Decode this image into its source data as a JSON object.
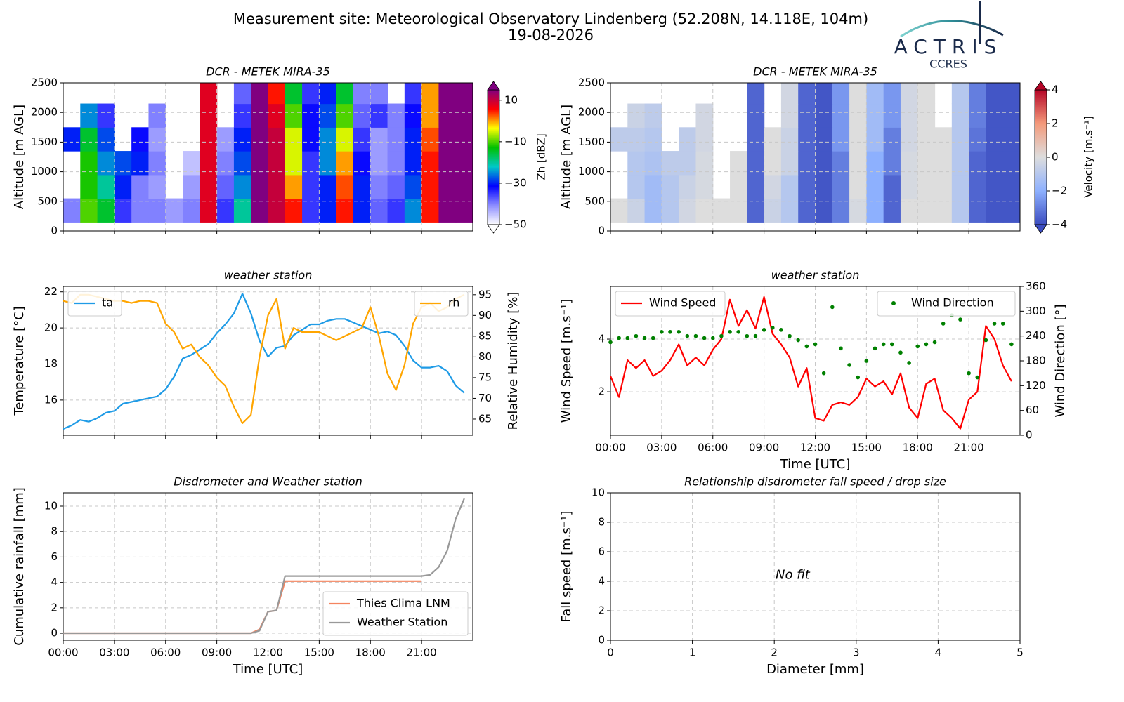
{
  "header": {
    "title": "Measurement site: Meteorological Observatory Lindenberg (52.208N, 14.118E, 104m)",
    "date": "19-08-2026",
    "logo": "ACTRIS",
    "logo_subtitle": "CCRES"
  },
  "chart_data": [
    {
      "type": "heatmap",
      "title": "DCR - METEK MIRA-35",
      "ylabel": "Altitude [m AGL]",
      "x": [
        0.5,
        1.5,
        2.5,
        3.5,
        4.5,
        5.5,
        6.5,
        7.5,
        8.5,
        9.5,
        10.5,
        11.5,
        12.5,
        13.5,
        14.5,
        15.5,
        16.5,
        17.5,
        18.5,
        19.5,
        20.5,
        21.5,
        22.5,
        23.5
      ],
      "y": [
        350,
        750,
        1150,
        1550,
        1950,
        2350
      ],
      "z": [
        [
          -40,
          -10,
          -15,
          -35,
          -40,
          -40,
          -42,
          -40,
          8,
          -35,
          -20,
          20,
          10,
          5,
          -35,
          -30,
          5,
          -30,
          -38,
          -35,
          -25,
          5,
          20,
          20
        ],
        [
          null,
          -12,
          -20,
          -30,
          -40,
          -42,
          null,
          -42,
          8,
          -38,
          -25,
          20,
          10,
          0,
          -35,
          -30,
          3,
          -30,
          -40,
          -38,
          -28,
          5,
          20,
          20
        ],
        [
          null,
          -12,
          -25,
          -28,
          -30,
          -40,
          null,
          -45,
          8,
          -40,
          -28,
          20,
          10,
          -5,
          -35,
          -25,
          0,
          -32,
          -42,
          -40,
          -30,
          5,
          20,
          20
        ],
        [
          -30,
          -15,
          -28,
          null,
          -32,
          -42,
          null,
          null,
          8,
          -42,
          -30,
          20,
          10,
          -5,
          -32,
          -25,
          -5,
          -35,
          -42,
          -40,
          -30,
          3,
          20,
          20
        ],
        [
          null,
          -25,
          -35,
          null,
          null,
          -40,
          null,
          null,
          8,
          null,
          -35,
          20,
          8,
          -10,
          -32,
          -28,
          -10,
          -38,
          -35,
          -40,
          -32,
          0,
          20,
          20
        ],
        [
          null,
          null,
          null,
          null,
          null,
          null,
          null,
          null,
          8,
          null,
          -38,
          20,
          5,
          -15,
          -35,
          -30,
          -15,
          -40,
          -40,
          null,
          -35,
          0,
          20,
          20
        ]
      ],
      "xlim": [
        0,
        24
      ],
      "xticks": [
        0,
        3,
        6,
        9,
        12,
        15,
        18,
        21
      ],
      "show_xtick_labels": false,
      "ylim": [
        0,
        2500
      ],
      "yticks": [
        0,
        500,
        1000,
        1500,
        2000,
        2500
      ],
      "zlim": [
        -50,
        15
      ],
      "zticks": [
        {
          "value": -50,
          "label": "−50"
        },
        {
          "value": -30,
          "label": "−30"
        },
        {
          "value": -10,
          "label": "−10"
        },
        10
      ],
      "zlabel": "Zh [dBZ]",
      "colors": [
        "#ffffff",
        "#8c8cff",
        "#0000ff",
        "#00c8c8",
        "#00c000",
        "#ffff00",
        "#ff0000",
        "#800080"
      ],
      "grid": true
    },
    {
      "type": "heatmap",
      "title": "DCR - METEK MIRA-35",
      "ylabel": "Altitude [m AGL]",
      "x": [
        0.5,
        1.5,
        2.5,
        3.5,
        4.5,
        5.5,
        6.5,
        7.5,
        8.5,
        9.5,
        10.5,
        11.5,
        12.5,
        13.5,
        14.5,
        15.5,
        16.5,
        17.5,
        18.5,
        19.5,
        20.5,
        21.5,
        22.5,
        23.5
      ],
      "y": [
        350,
        750,
        1150,
        1550,
        1950,
        2350
      ],
      "z": [
        [
          0,
          -0.5,
          -1.5,
          -1,
          -0.3,
          0,
          0,
          0,
          -3.5,
          -0.5,
          -1,
          -3.5,
          -3.8,
          -3,
          -0.2,
          -2,
          -3.5,
          0,
          0,
          0,
          -1,
          -3.5,
          -3.8,
          -3.8
        ],
        [
          null,
          -1,
          -1.5,
          -1,
          -0.5,
          -0.2,
          null,
          0,
          -3.5,
          -0.3,
          -1,
          -3.5,
          -3.8,
          -3,
          0,
          -2,
          -3.5,
          -0.2,
          0,
          0,
          -1,
          -3.5,
          -3.8,
          -3.8
        ],
        [
          null,
          -1,
          -1.2,
          -0.8,
          -0.8,
          -0.2,
          null,
          0,
          -3.5,
          0,
          -0.5,
          -3.5,
          -3.8,
          -3,
          0,
          -2,
          -3,
          -0.2,
          0,
          0,
          -1,
          -3.5,
          -3.8,
          -3.8
        ],
        [
          -0.8,
          -0.8,
          -1,
          null,
          -0.8,
          -0.3,
          null,
          null,
          -3.5,
          0,
          -0.5,
          -3.5,
          -3.8,
          -2.5,
          0,
          -1.5,
          -3,
          -0.3,
          0,
          0,
          -1,
          -3.2,
          -3.8,
          -3.8
        ],
        [
          null,
          -0.5,
          -0.8,
          null,
          null,
          -0.3,
          null,
          null,
          -3.5,
          null,
          -0.3,
          -3.5,
          -3.8,
          -2.5,
          0,
          -1.5,
          -2.5,
          -0.3,
          0,
          null,
          -1,
          -3,
          -3.8,
          -3.8
        ],
        [
          null,
          null,
          null,
          null,
          null,
          null,
          null,
          null,
          -3.5,
          null,
          -0.3,
          -3.5,
          -3.8,
          -2.5,
          0,
          -1.5,
          -2.5,
          -0.3,
          0,
          null,
          -1,
          -3,
          -3.8,
          -3.8
        ]
      ],
      "xlim": [
        0,
        24
      ],
      "xticks": [
        0,
        3,
        6,
        9,
        12,
        15,
        18,
        21
      ],
      "show_xtick_labels": false,
      "ylim": [
        0,
        2500
      ],
      "yticks": [
        0,
        500,
        1000,
        1500,
        2000,
        2500
      ],
      "zlim": [
        -4,
        4
      ],
      "zticks": [
        {
          "value": -4,
          "label": "−4"
        },
        {
          "value": -2,
          "label": "−2"
        },
        0,
        2,
        4
      ],
      "zlabel": "Velocity [m.s⁻¹]",
      "colors": [
        "#3b4cc0",
        "#8db0fe",
        "#dddddd",
        "#f49a7b",
        "#b40426"
      ],
      "grid": true
    },
    {
      "type": "line",
      "title": "weather station",
      "ylabel": "Temperature [°C]",
      "y2label": "Relative Humidity [%]",
      "x": [
        0,
        0.5,
        1,
        1.5,
        2,
        2.5,
        3,
        3.5,
        4,
        4.5,
        5,
        5.5,
        6,
        6.5,
        7,
        7.5,
        8,
        8.5,
        9,
        9.5,
        10,
        10.5,
        11,
        11.5,
        12,
        12.5,
        13,
        13.5,
        14,
        14.5,
        15,
        15.5,
        16,
        16.5,
        17,
        17.5,
        18,
        18.5,
        19,
        19.5,
        20,
        20.5,
        21,
        21.5,
        22,
        22.5,
        23,
        23.5
      ],
      "series": [
        {
          "name": "ta",
          "color": "#1f9be6",
          "legend": "upper left",
          "values": [
            14.4,
            14.6,
            14.9,
            14.8,
            15.0,
            15.3,
            15.4,
            15.8,
            15.9,
            16.0,
            16.1,
            16.2,
            16.6,
            17.3,
            18.3,
            18.5,
            18.8,
            19.1,
            19.7,
            20.2,
            20.8,
            21.9,
            20.8,
            19.3,
            18.4,
            18.9,
            19.0,
            19.6,
            19.9,
            20.2,
            20.2,
            20.4,
            20.5,
            20.5,
            20.3,
            20.1,
            19.9,
            19.7,
            19.8,
            19.6,
            19.0,
            18.2,
            17.8,
            17.8,
            17.9,
            17.6,
            16.8,
            16.4
          ]
        },
        {
          "name": "rh",
          "color": "#ffa500",
          "axis": "y2",
          "legend": "upper right",
          "values": [
            93.5,
            93,
            95,
            95,
            94.5,
            94,
            93.5,
            93.5,
            93,
            93.5,
            93.5,
            93,
            88,
            86,
            82,
            83,
            80,
            78,
            75,
            73,
            68,
            64,
            66,
            80,
            90,
            94,
            82,
            87,
            86,
            86,
            86,
            85,
            84,
            85,
            86,
            87,
            92,
            85,
            76,
            72,
            78,
            88,
            92,
            93,
            91,
            92,
            94,
            95
          ]
        }
      ],
      "xlim": [
        0,
        24
      ],
      "xticks": [
        0,
        3,
        6,
        9,
        12,
        15,
        18,
        21
      ],
      "show_xtick_labels": false,
      "ylim": [
        14.05,
        22.3
      ],
      "yticks": [
        16,
        18,
        20,
        22
      ],
      "y2lim": [
        61.1,
        97
      ],
      "y2ticks": [
        65,
        70,
        75,
        80,
        85,
        90,
        95
      ],
      "grid": true
    },
    {
      "type": "line",
      "title": "weather station",
      "xlabel": "Time [UTC]",
      "ylabel": "Wind Speed [m.s⁻¹]",
      "y2label": "Wind Direction [°]",
      "x": [
        0,
        0.5,
        1,
        1.5,
        2,
        2.5,
        3,
        3.5,
        4,
        4.5,
        5,
        5.5,
        6,
        6.5,
        7,
        7.5,
        8,
        8.5,
        9,
        9.5,
        10,
        10.5,
        11,
        11.5,
        12,
        12.5,
        13,
        13.5,
        14,
        14.5,
        15,
        15.5,
        16,
        16.5,
        17,
        17.5,
        18,
        18.5,
        19,
        19.5,
        20,
        20.5,
        21,
        21.5,
        22,
        22.5,
        23,
        23.5
      ],
      "series": [
        {
          "name": "Wind Speed",
          "color": "#ff0000",
          "legend": "upper left",
          "values": [
            2.6,
            1.8,
            3.2,
            2.9,
            3.2,
            2.6,
            2.8,
            3.2,
            3.8,
            3.0,
            3.3,
            3.0,
            3.6,
            4.0,
            5.5,
            4.5,
            5.1,
            4.4,
            5.6,
            4.2,
            3.8,
            3.3,
            2.2,
            2.9,
            1.0,
            0.9,
            1.5,
            1.6,
            1.5,
            1.8,
            2.5,
            2.2,
            2.4,
            1.9,
            2.7,
            1.4,
            1.0,
            2.3,
            2.5,
            1.3,
            1.0,
            0.6,
            1.7,
            2.0,
            4.5,
            4.0,
            3.0,
            2.4
          ]
        },
        {
          "name": "Wind Direction",
          "color": "#008000",
          "axis": "y2",
          "marker": "dot",
          "legend": "upper right",
          "values": [
            225,
            235,
            235,
            240,
            235,
            235,
            250,
            250,
            250,
            240,
            240,
            235,
            235,
            240,
            250,
            250,
            240,
            240,
            255,
            260,
            255,
            240,
            230,
            215,
            220,
            150,
            310,
            210,
            170,
            140,
            180,
            210,
            220,
            220,
            200,
            175,
            215,
            220,
            225,
            270,
            290,
            280,
            150,
            140,
            230,
            270,
            270,
            220
          ]
        }
      ],
      "xlim": [
        0,
        24
      ],
      "xticks": [
        {
          "value": 0,
          "label": "00:00"
        },
        {
          "value": 3,
          "label": "03:00"
        },
        {
          "value": 6,
          "label": "06:00"
        },
        {
          "value": 9,
          "label": "09:00"
        },
        {
          "value": 12,
          "label": "12:00"
        },
        {
          "value": 15,
          "label": "15:00"
        },
        {
          "value": 18,
          "label": "18:00"
        },
        {
          "value": 21,
          "label": "21:00"
        }
      ],
      "ylim": [
        0.35,
        6.0
      ],
      "yticks": [
        2,
        4
      ],
      "y2lim": [
        0,
        360
      ],
      "y2ticks": [
        0,
        60,
        120,
        180,
        240,
        300,
        360
      ],
      "grid": true
    },
    {
      "type": "line",
      "title": "Disdrometer and Weather station",
      "xlabel": "Time [UTC]",
      "ylabel": "Cumulative rainfall [mm]",
      "legend": "lower right",
      "x": [
        0,
        0.5,
        1,
        1.5,
        2,
        2.5,
        3,
        3.5,
        4,
        4.5,
        5,
        5.5,
        6,
        6.5,
        7,
        7.5,
        8,
        8.5,
        9,
        9.5,
        10,
        10.5,
        11,
        11.5,
        12,
        12.5,
        13,
        13.5,
        14,
        14.5,
        15,
        15.5,
        16,
        16.5,
        17,
        17.5,
        18,
        18.5,
        19,
        19.5,
        20,
        20.5,
        21,
        21.5,
        22,
        22.5,
        23,
        23.5
      ],
      "series": [
        {
          "name": "Thies Clima LNM",
          "color": "#f4845f",
          "values": [
            0,
            0,
            0,
            0,
            0,
            0,
            0,
            0,
            0,
            0,
            0,
            0,
            0,
            0,
            0,
            0,
            0,
            0,
            0,
            0,
            0,
            0,
            0,
            0.3,
            1.7,
            1.8,
            4.1,
            4.1,
            4.1,
            4.1,
            4.1,
            4.1,
            4.1,
            4.1,
            4.1,
            4.1,
            4.1,
            4.1,
            4.1,
            4.1,
            4.1,
            4.1,
            4.1,
            null,
            null,
            null,
            null,
            null
          ]
        },
        {
          "name": "Weather Station",
          "color": "#999999",
          "values": [
            0,
            0,
            0,
            0,
            0,
            0,
            0,
            0,
            0,
            0,
            0,
            0,
            0,
            0,
            0,
            0,
            0,
            0,
            0,
            0,
            0,
            0,
            0,
            0.2,
            1.7,
            1.8,
            4.5,
            4.5,
            4.5,
            4.5,
            4.5,
            4.5,
            4.5,
            4.5,
            4.5,
            4.5,
            4.5,
            4.5,
            4.5,
            4.5,
            4.5,
            4.5,
            4.5,
            4.6,
            5.2,
            6.5,
            9.0,
            10.6
          ]
        }
      ],
      "xlim": [
        0,
        24
      ],
      "xticks": [
        {
          "value": 0,
          "label": "00:00"
        },
        {
          "value": 3,
          "label": "03:00"
        },
        {
          "value": 6,
          "label": "06:00"
        },
        {
          "value": 9,
          "label": "09:00"
        },
        {
          "value": 12,
          "label": "12:00"
        },
        {
          "value": 15,
          "label": "15:00"
        },
        {
          "value": 18,
          "label": "18:00"
        },
        {
          "value": 21,
          "label": "21:00"
        }
      ],
      "ylim": [
        -0.55,
        11.05
      ],
      "yticks": [
        0,
        2,
        4,
        6,
        8,
        10
      ],
      "grid": true
    },
    {
      "type": "scatter",
      "title": "Relationship disdrometer fall speed / drop size",
      "xlabel": "Diameter [mm]",
      "ylabel": "Fall speed [m.s⁻¹]",
      "annotation": "No fit",
      "xlim": [
        0,
        5
      ],
      "xticks": [
        0,
        1,
        2,
        3,
        4,
        5
      ],
      "ylim": [
        0,
        10
      ],
      "yticks": [
        0,
        2,
        4,
        6,
        8,
        10
      ],
      "grid": true
    }
  ]
}
